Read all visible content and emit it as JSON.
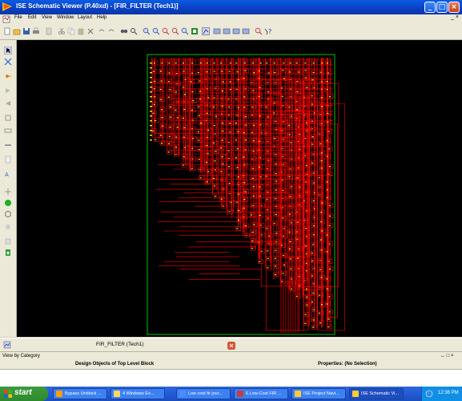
{
  "window": {
    "title": "ISE Schematic Viewer (P.40xd) - [FIR_FILTER (Tech1)]",
    "controls": [
      "minimize",
      "maximize",
      "close"
    ]
  },
  "menu": {
    "items": [
      "File",
      "Edit",
      "View",
      "Window",
      "Layout",
      "Help"
    ]
  },
  "toolbar": {
    "icons": [
      "new-icon",
      "open-icon",
      "save-icon",
      "print-icon",
      "cut-icon",
      "copy-icon",
      "paste-icon",
      "delete-icon",
      "undo-icon",
      "redo-icon",
      "find-icon",
      "zoom-in-icon",
      "zoom-out-icon",
      "zoom-full-icon",
      "zoom-select-icon",
      "add-wire-icon",
      "add-bus-icon",
      "mark-icon",
      "help-icon"
    ]
  },
  "left_toolbar": {
    "icons": [
      "select-icon",
      "wire-icon",
      "net-icon",
      "pin-icon",
      "arrow-left-icon",
      "symbol-icon",
      "rectangle-icon",
      "bus-icon",
      "text-icon",
      "label-icon",
      "pan-icon",
      "green-dot-icon",
      "circle-icon",
      "power-icon",
      "ground-icon",
      "marker-icon"
    ]
  },
  "schematic": {
    "name": "FIR_FILTER (Tech1)",
    "colors": {
      "background": "#000000",
      "border": "#00c000",
      "wires": "#ff0000",
      "pins": "#ffff00"
    }
  },
  "tab": {
    "label": "FIR_FILTER (Tech1)"
  },
  "panel": {
    "view_by": "View by Category",
    "left_header": "Design Objects of Top Level Block",
    "right_header": "Properties: (No Selection)",
    "controls": "↔ □ ×"
  },
  "taskbar": {
    "start_label": "start",
    "tasks": [
      {
        "label": "Bypass Unblock ...",
        "icon_color": "#ff9c00"
      },
      {
        "label": "4 Windows Ex...",
        "icon_color": "#ffd860"
      },
      {
        "label": "Low cost fir jour...",
        "icon_color": "#4a8cff"
      },
      {
        "label": "6.Low-Cost FIR ...",
        "icon_color": "#c04040"
      },
      {
        "label": "ISE Project Navi...",
        "icon_color": "#ffcc33"
      },
      {
        "label": "ISE Schematic Vi...",
        "icon_color": "#ffcc33",
        "active": true
      }
    ],
    "clock": "12:36 PM"
  }
}
